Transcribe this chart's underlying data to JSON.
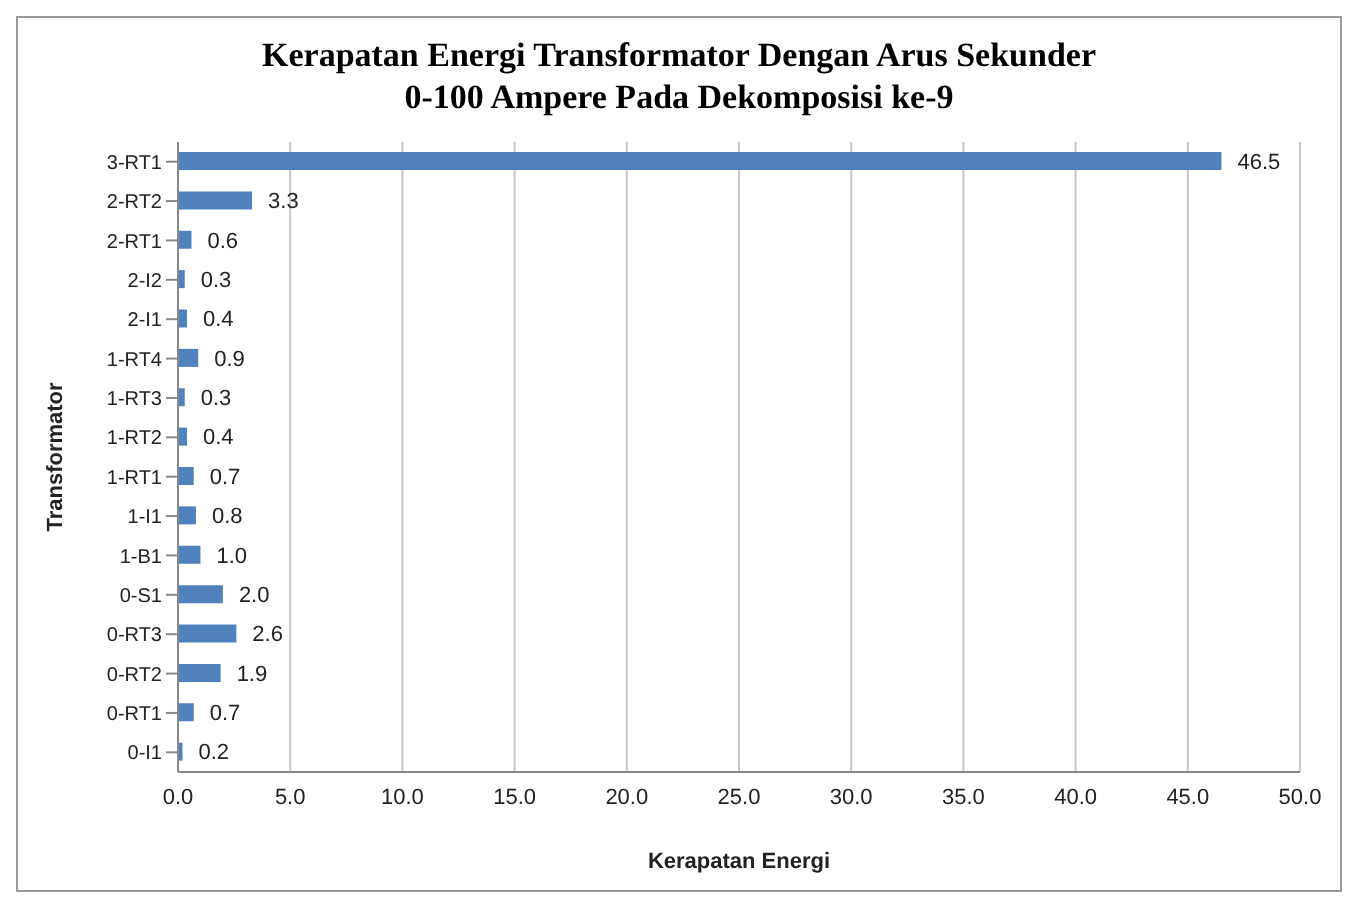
{
  "chart_data": {
    "type": "bar",
    "orientation": "horizontal",
    "title": "Kerapatan Energi Transformator Dengan Arus Sekunder 0-100 Ampere Pada Dekomposisi ke-9",
    "xlabel": "Kerapatan Energi",
    "ylabel": "Transformator",
    "categories": [
      "3-RT1",
      "2-RT2",
      "2-RT1",
      "2-I2",
      "2-I1",
      "1-RT4",
      "1-RT3",
      "1-RT2",
      "1-RT1",
      "1-I1",
      "1-B1",
      "0-S1",
      "0-RT3",
      "0-RT2",
      "0-RT1",
      "0-I1"
    ],
    "values": [
      46.5,
      3.3,
      0.6,
      0.3,
      0.4,
      0.9,
      0.3,
      0.4,
      0.7,
      0.8,
      1.0,
      2.0,
      2.6,
      1.9,
      0.7,
      0.2
    ],
    "value_labels": [
      "46.5",
      "3.3",
      "0.6",
      "0.3",
      "0.4",
      "0.9",
      "0.3",
      "0.4",
      "0.7",
      "0.8",
      "1.0",
      "2.0",
      "2.6",
      "1.9",
      "0.7",
      "0.2"
    ],
    "color": "#4f81bd",
    "xlim": [
      0,
      50
    ],
    "xticks": [
      {
        "value": 0,
        "label": "0.0"
      },
      {
        "value": 5,
        "label": "5.0"
      },
      {
        "value": 10,
        "label": "10.0"
      },
      {
        "value": 15,
        "label": "15.0"
      },
      {
        "value": 20,
        "label": "20.0"
      },
      {
        "value": 25,
        "label": "25.0"
      },
      {
        "value": 30,
        "label": "30.0"
      },
      {
        "value": 35,
        "label": "35.0"
      },
      {
        "value": 40,
        "label": "40.0"
      },
      {
        "value": 45,
        "label": "45.0"
      },
      {
        "value": 50,
        "label": "50.0"
      }
    ],
    "grid": "x",
    "legend": false
  }
}
